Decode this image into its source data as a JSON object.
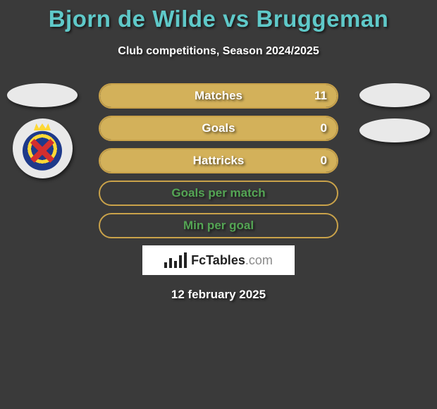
{
  "title": "Bjorn de Wilde vs Bruggeman",
  "subtitle": "Club competitions, Season 2024/2025",
  "footer_date": "12 february 2025",
  "logo": {
    "brand_a": "FcTables",
    "brand_b": ".com"
  },
  "colors": {
    "title": "#5fc9c9",
    "bar_border": "#c9a24a",
    "bar_fill_matches": "#d3b15a",
    "bar_fill_goals": "#d3b15a",
    "bar_fill_hattricks": "#d3b15a",
    "bar_fill_gpm": "#6fb96f",
    "bar_fill_mpg": "#6fb96f",
    "label_white": "#ffffff",
    "label_green": "#54a554"
  },
  "bars": [
    {
      "key": "matches",
      "label": "Matches",
      "value": "11",
      "fill_pct": 100,
      "fill_color": "#d3b15a",
      "label_color": "#ffffff"
    },
    {
      "key": "goals",
      "label": "Goals",
      "value": "0",
      "fill_pct": 100,
      "fill_color": "#d3b15a",
      "label_color": "#ffffff"
    },
    {
      "key": "hattricks",
      "label": "Hattricks",
      "value": "0",
      "fill_pct": 100,
      "fill_color": "#d3b15a",
      "label_color": "#ffffff"
    },
    {
      "key": "gpm",
      "label": "Goals per match",
      "value": "",
      "fill_pct": 0,
      "fill_color": "#6fb96f",
      "label_color": "#54a554"
    },
    {
      "key": "mpg",
      "label": "Min per goal",
      "value": "",
      "fill_pct": 0,
      "fill_color": "#6fb96f",
      "label_color": "#54a554"
    }
  ],
  "left_player": {
    "has_badge": true
  },
  "right_player": {
    "has_badge": false,
    "extra_ellipses": 2
  }
}
